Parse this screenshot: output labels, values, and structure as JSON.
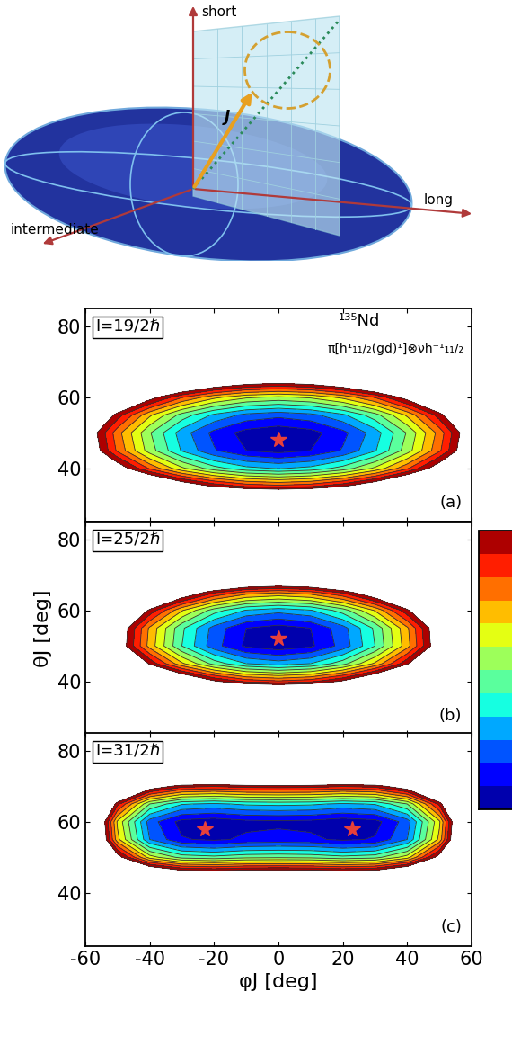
{
  "diagram": {
    "axis_labels": {
      "short": "short",
      "long": "long",
      "intermediate": "intermediate"
    },
    "vector": "J"
  },
  "chart_data": [
    {
      "type": "contour",
      "spin_label": "I=19/2ℏ",
      "panel_label": "(a)",
      "nucleus": "¹³⁵Nd",
      "configuration": "π[h¹₁₁/₂(gd)¹]⊗νh⁻¹₁₁/₂",
      "tick_labels": "y",
      "marker": "star",
      "xlim": [
        -60,
        60
      ],
      "ylim": [
        25,
        85
      ],
      "xticks": [
        -60,
        -40,
        -20,
        0,
        20,
        40,
        60
      ],
      "yticks": [
        40,
        60,
        80
      ],
      "levels": [
        0,
        1,
        2,
        3,
        4,
        5,
        6,
        7,
        8,
        9,
        10,
        11,
        12
      ],
      "minima": [
        {
          "phi": 0,
          "theta": 48
        }
      ],
      "x": [
        -60,
        -50,
        -40,
        -30,
        -20,
        -10,
        0,
        10,
        20,
        30,
        40,
        50,
        60
      ],
      "y": [
        30,
        35,
        40,
        45,
        50,
        55,
        60,
        65,
        70,
        75,
        80
      ],
      "z": [
        [
          33.1,
          29.0,
          25.7,
          23.1,
          21.3,
          20.2,
          19.8,
          20.2,
          21.3,
          23.1,
          25.7,
          29.0,
          33.1
        ],
        [
          23.6,
          19.5,
          16.2,
          13.6,
          11.8,
          10.7,
          10.3,
          10.7,
          11.8,
          13.6,
          16.2,
          19.5,
          23.6
        ],
        [
          17.2,
          13.1,
          9.8,
          7.2,
          5.4,
          4.3,
          3.9,
          4.3,
          5.4,
          7.2,
          9.8,
          13.1,
          17.2
        ],
        [
          13.9,
          9.8,
          6.5,
          3.9,
          2.1,
          1.0,
          0.6,
          1.0,
          2.1,
          3.9,
          6.5,
          9.8,
          13.9
        ],
        [
          13.5,
          9.4,
          6.1,
          3.5,
          1.7,
          0.6,
          0.2,
          0.6,
          1.7,
          3.5,
          6.1,
          9.4,
          13.5
        ],
        [
          15.6,
          11.5,
          8.2,
          5.6,
          3.8,
          2.7,
          2.3,
          2.7,
          3.8,
          5.6,
          8.2,
          11.5,
          15.6
        ],
        [
          20.1,
          16.0,
          12.7,
          10.1,
          8.3,
          7.2,
          6.8,
          7.2,
          8.3,
          10.1,
          12.7,
          16.0,
          20.1
        ],
        [
          26.8,
          22.7,
          19.4,
          16.8,
          15.0,
          13.9,
          13.5,
          13.9,
          15.0,
          16.8,
          19.4,
          22.7,
          26.8
        ],
        [
          36.0,
          31.9,
          28.6,
          26.0,
          24.2,
          23.1,
          22.7,
          23.1,
          24.2,
          26.0,
          28.6,
          31.9,
          36.0
        ],
        [
          47.5,
          43.4,
          40.1,
          37.5,
          35.7,
          34.6,
          34.2,
          34.6,
          35.7,
          37.5,
          40.1,
          43.4,
          47.5
        ],
        [
          61.3,
          57.2,
          53.9,
          51.3,
          49.5,
          48.4,
          48.0,
          48.4,
          49.5,
          51.3,
          53.9,
          57.2,
          61.3
        ]
      ]
    },
    {
      "type": "contour",
      "spin_label": "I=25/2ℏ",
      "panel_label": "(b)",
      "ylabel": "θJ [deg]",
      "tick_labels": "y",
      "marker": "star",
      "xlim": [
        -60,
        60
      ],
      "ylim": [
        25,
        85
      ],
      "xticks": [
        -60,
        -40,
        -20,
        0,
        20,
        40,
        60
      ],
      "yticks": [
        40,
        60,
        80
      ],
      "levels": [
        0,
        1,
        2,
        3,
        4,
        5,
        6,
        7,
        8,
        9,
        10,
        11,
        12
      ],
      "minima": [
        {
          "phi": 0,
          "theta": 52
        }
      ],
      "x": [
        -60,
        -50,
        -40,
        -30,
        -20,
        -10,
        0,
        10,
        20,
        30,
        40,
        50,
        60
      ],
      "y": [
        30,
        35,
        40,
        45,
        50,
        55,
        60,
        65,
        70,
        75,
        80
      ],
      "z": [
        [
          53.2,
          47.4,
          42.7,
          39.1,
          36.5,
          34.9,
          34.4,
          34.9,
          36.5,
          39.1,
          42.7,
          47.4,
          53.2
        ],
        [
          39.3,
          33.5,
          28.8,
          25.2,
          22.6,
          21.0,
          20.5,
          21.0,
          22.6,
          25.2,
          28.8,
          33.5,
          39.3
        ],
        [
          29.0,
          23.2,
          18.5,
          14.9,
          12.3,
          10.7,
          10.2,
          10.7,
          12.3,
          14.9,
          18.5,
          23.2,
          29.0
        ],
        [
          22.3,
          16.5,
          11.8,
          8.2,
          5.6,
          4.0,
          3.5,
          4.0,
          5.6,
          8.2,
          11.8,
          16.5,
          22.3
        ],
        [
          19.1,
          13.3,
          8.6,
          5.0,
          2.4,
          0.8,
          0.3,
          0.8,
          2.4,
          5.0,
          8.6,
          13.3,
          19.1
        ],
        [
          19.3,
          13.5,
          8.8,
          5.2,
          2.6,
          1.0,
          0.5,
          1.0,
          2.6,
          5.2,
          8.8,
          13.5,
          19.3
        ],
        [
          22.2,
          16.4,
          11.7,
          8.1,
          5.5,
          3.9,
          3.4,
          3.9,
          5.5,
          8.1,
          11.7,
          16.4,
          22.2
        ],
        [
          27.8,
          22.0,
          17.3,
          13.7,
          11.1,
          9.5,
          9.0,
          9.5,
          11.1,
          13.7,
          17.3,
          22.0,
          27.8
        ],
        [
          36.1,
          30.3,
          25.6,
          22.0,
          19.4,
          17.8,
          17.3,
          17.8,
          19.4,
          22.0,
          25.6,
          30.3,
          36.1
        ],
        [
          47.0,
          41.2,
          36.5,
          32.9,
          30.3,
          28.7,
          28.2,
          28.7,
          30.3,
          32.9,
          36.5,
          41.2,
          47.0
        ],
        [
          60.6,
          54.8,
          50.1,
          46.5,
          43.9,
          42.3,
          41.8,
          42.3,
          43.9,
          46.5,
          50.1,
          54.8,
          60.6
        ]
      ]
    },
    {
      "type": "contour",
      "spin_label": "I=31/2ℏ",
      "panel_label": "(c)",
      "xlabel": "φJ [deg]",
      "marker": "star",
      "xlim": [
        -60,
        60
      ],
      "ylim": [
        25,
        85
      ],
      "xticks": [
        -60,
        -40,
        -20,
        0,
        20,
        40,
        60
      ],
      "yticks": [
        40,
        60,
        80
      ],
      "levels": [
        0,
        1,
        2,
        3,
        4,
        5,
        6,
        7,
        8,
        9,
        10,
        11,
        12
      ],
      "minima": [
        {
          "phi": -23,
          "theta": 58
        },
        {
          "phi": 23,
          "theta": 58
        }
      ],
      "x": [
        -60,
        -50,
        -40,
        -30,
        -20,
        -10,
        0,
        10,
        20,
        30,
        40,
        50,
        60
      ],
      "y": [
        30,
        35,
        40,
        45,
        50,
        55,
        60,
        65,
        70,
        75,
        80
      ],
      "z": [
        [
          83.5,
          72.8,
          67.5,
          65.6,
          65.3,
          65.7,
          65.8,
          65.7,
          65.3,
          65.6,
          67.5,
          72.8,
          83.5
        ],
        [
          62.3,
          51.6,
          46.3,
          44.4,
          44.1,
          44.5,
          44.6,
          44.5,
          44.1,
          44.4,
          46.3,
          51.6,
          62.3
        ],
        [
          45.2,
          34.5,
          29.2,
          27.3,
          27.0,
          27.4,
          27.5,
          27.4,
          27.0,
          27.3,
          29.2,
          34.5,
          45.2
        ],
        [
          32.3,
          21.6,
          16.3,
          14.4,
          14.1,
          14.5,
          14.6,
          14.5,
          14.1,
          14.4,
          16.3,
          21.6,
          32.3
        ],
        [
          23.5,
          12.8,
          7.5,
          5.6,
          5.3,
          5.7,
          5.8,
          5.7,
          5.3,
          5.6,
          7.5,
          12.8,
          23.5
        ],
        [
          19.0,
          8.3,
          3.0,
          1.1,
          0.8,
          1.2,
          1.3,
          1.2,
          0.8,
          1.1,
          3.0,
          8.3,
          19.0
        ],
        [
          18.5,
          7.8,
          2.5,
          0.6,
          0.3,
          0.7,
          0.8,
          0.7,
          0.3,
          0.6,
          2.5,
          7.8,
          18.5
        ],
        [
          22.0,
          11.3,
          6.0,
          4.1,
          3.8,
          4.2,
          4.3,
          4.2,
          3.8,
          4.1,
          6.0,
          11.3,
          22.0
        ],
        [
          29.3,
          18.6,
          13.3,
          11.4,
          11.1,
          11.5,
          11.6,
          11.5,
          11.1,
          11.4,
          13.3,
          18.6,
          29.3
        ],
        [
          40.4,
          29.7,
          24.4,
          22.5,
          22.2,
          22.6,
          22.7,
          22.6,
          22.2,
          22.5,
          24.4,
          29.7,
          40.4
        ],
        [
          55.4,
          44.7,
          39.4,
          37.5,
          37.2,
          37.6,
          37.7,
          37.6,
          37.2,
          37.5,
          39.4,
          44.7,
          55.4
        ]
      ]
    }
  ]
}
